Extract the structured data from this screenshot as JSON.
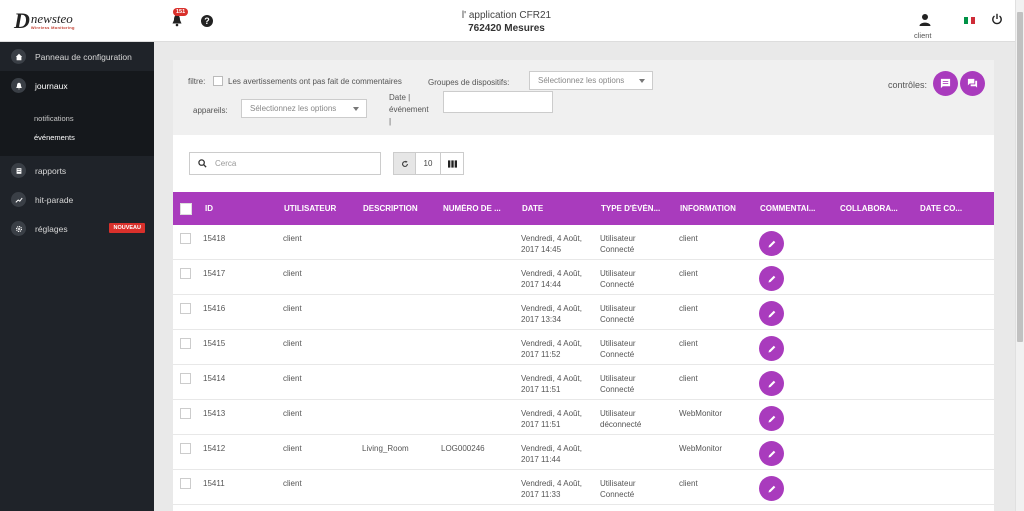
{
  "brand": {
    "name": "newsteo",
    "tagline": "Wireless Monitoring"
  },
  "sidebar": {
    "items": [
      {
        "label": "Panneau de configuration",
        "icon": "home-icon"
      },
      {
        "label": "journaux",
        "icon": "bell-icon"
      },
      {
        "label": "rapports",
        "icon": "report-icon"
      },
      {
        "label": "hit-parade",
        "icon": "trend-icon"
      },
      {
        "label": "réglages",
        "icon": "gear-icon",
        "badge": "NOUVEAU"
      }
    ],
    "subitems": [
      {
        "label": "notifications"
      },
      {
        "label": "événements"
      }
    ]
  },
  "header": {
    "notification_count": "151",
    "app_title": "l' application CFR21",
    "app_subtitle": "762420 Mesures",
    "user_label": "client"
  },
  "filters": {
    "filter_label": "filtre:",
    "checkbox_label": "Les avertissements ont pas fait de commentaires",
    "groups_label": "Groupes de dispositifs:",
    "groups_placeholder": "Sélectionnez les options",
    "devices_label": "appareils:",
    "devices_placeholder": "Sélectionnez les options",
    "date_label_1": "Date |",
    "date_label_2": "événement",
    "date_label_3": "|",
    "controls_label": "contrôles:"
  },
  "toolbar": {
    "search_placeholder": "Cerca",
    "page_size": "10"
  },
  "table": {
    "columns": [
      "ID",
      "UTILISATEUR",
      "DESCRIPTION",
      "NUMÉRO DE ...",
      "DATE",
      "TYPE D'ÉVÉN...",
      "INFORMATION",
      "COMMENTAI...",
      "COLLABORA...",
      "DATE CO..."
    ],
    "rows": [
      {
        "id": "15418",
        "user": "client",
        "description": "",
        "number": "",
        "date1": "Vendredi, 4 Août,",
        "date2": "2017 14:45",
        "type1": "Utilisateur",
        "type2": "Connecté",
        "info": "client"
      },
      {
        "id": "15417",
        "user": "client",
        "description": "",
        "number": "",
        "date1": "Vendredi, 4 Août,",
        "date2": "2017 14:44",
        "type1": "Utilisateur",
        "type2": "Connecté",
        "info": "client"
      },
      {
        "id": "15416",
        "user": "client",
        "description": "",
        "number": "",
        "date1": "Vendredi, 4 Août,",
        "date2": "2017 13:34",
        "type1": "Utilisateur",
        "type2": "Connecté",
        "info": "client"
      },
      {
        "id": "15415",
        "user": "client",
        "description": "",
        "number": "",
        "date1": "Vendredi, 4 Août,",
        "date2": "2017 11:52",
        "type1": "Utilisateur",
        "type2": "Connecté",
        "info": "client"
      },
      {
        "id": "15414",
        "user": "client",
        "description": "",
        "number": "",
        "date1": "Vendredi, 4 Août,",
        "date2": "2017 11:51",
        "type1": "Utilisateur",
        "type2": "Connecté",
        "info": "client"
      },
      {
        "id": "15413",
        "user": "client",
        "description": "",
        "number": "",
        "date1": "Vendredi, 4 Août,",
        "date2": "2017 11:51",
        "type1": "Utilisateur",
        "type2": "déconnecté",
        "info": "WebMonitor"
      },
      {
        "id": "15412",
        "user": "client",
        "description": "Living_Room",
        "number": "LOG000246",
        "date1": "Vendredi, 4 Août,",
        "date2": "2017 11:44",
        "type1": "",
        "type2": "",
        "info": "WebMonitor"
      },
      {
        "id": "15411",
        "user": "client",
        "description": "",
        "number": "",
        "date1": "Vendredi, 4 Août,",
        "date2": "2017 11:33",
        "type1": "Utilisateur",
        "type2": "Connecté",
        "info": "client"
      }
    ]
  },
  "colors": {
    "accent": "#a93bbd",
    "sidebar": "#1f2329",
    "badge": "#d9302b"
  }
}
